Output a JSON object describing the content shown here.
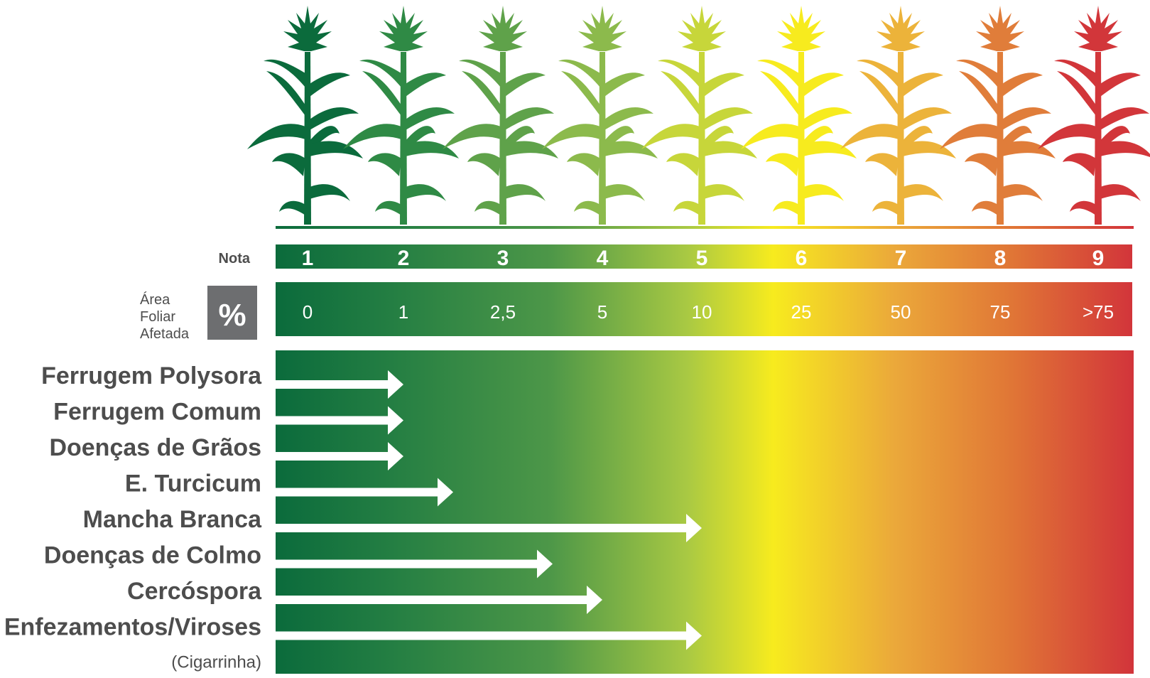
{
  "colors": {
    "scale": [
      "#0b6b3c",
      "#2f8a45",
      "#5fa24a",
      "#8cba4c",
      "#c7d63a",
      "#f7eb1e",
      "#ecb33a",
      "#e07d3a",
      "#d2363a"
    ],
    "label_gray": "#4d4d4d",
    "percent_box": "#6d6e70",
    "arrow": "#ffffff"
  },
  "nota": {
    "label": "Nota",
    "grades": [
      "1",
      "2",
      "3",
      "4",
      "5",
      "6",
      "7",
      "8",
      "9"
    ]
  },
  "area": {
    "label_lines": [
      "Área",
      "Foliar",
      "Afetada"
    ],
    "percent_symbol": "%",
    "values": [
      "0",
      "1",
      "2,5",
      "5",
      "10",
      "25",
      "50",
      "75",
      ">75"
    ]
  },
  "plants": {
    "icon": "corn-plant-icon",
    "count": 9
  },
  "diseases": [
    {
      "name": "Ferrugem Polysora",
      "max_grade": 2
    },
    {
      "name": "Ferrugem Comum",
      "max_grade": 2
    },
    {
      "name": "Doenças de Grãos",
      "max_grade": 2
    },
    {
      "name": "E. Turcicum",
      "max_grade": 2.5
    },
    {
      "name": "Mancha Branca",
      "max_grade": 5
    },
    {
      "name": "Doenças de Colmo",
      "max_grade": 3.5
    },
    {
      "name": "Cercóspora",
      "max_grade": 4
    },
    {
      "name": "Enfezamentos/Viroses",
      "sub": "(Cigarrinha)",
      "max_grade": 5
    }
  ]
}
